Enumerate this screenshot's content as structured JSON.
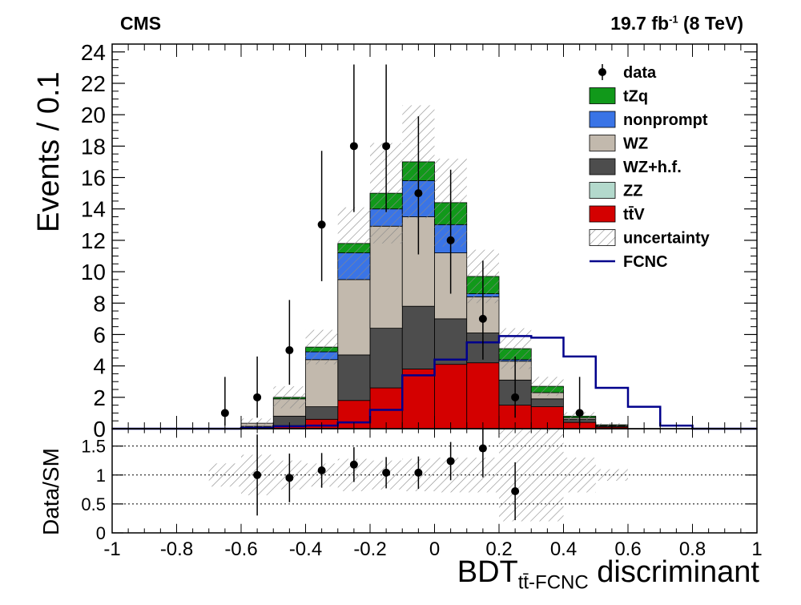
{
  "header": {
    "experiment": "CMS",
    "lumi_value": "19.7 fb",
    "lumi_exp": "-1",
    "lumi_energy": " (8 TeV)"
  },
  "axes": {
    "ylabel_main": "Events / 0.1",
    "ylabel_ratio": "Data/SM",
    "xlabel_main": "BDT",
    "xlabel_sub": "tt̄-FCNC",
    "xlabel_tail": " discriminant"
  },
  "chart_data": [
    {
      "type": "bar",
      "subtype": "stacked-histogram",
      "bin_edges": [
        -1,
        -0.9,
        -0.8,
        -0.7,
        -0.6,
        -0.5,
        -0.4,
        -0.3,
        -0.2,
        -0.1,
        0,
        0.1,
        0.2,
        0.3,
        0.4,
        0.5,
        0.6,
        0.7,
        0.8,
        0.9,
        1
      ],
      "xlim": [
        -1,
        1
      ],
      "ylim": [
        0,
        24.5
      ],
      "yticks": [
        0,
        2,
        4,
        6,
        8,
        10,
        12,
        14,
        16,
        18,
        20,
        22,
        24
      ],
      "xticks": [
        "-1",
        "-0.8",
        "-0.6",
        "-0.4",
        "-0.2",
        "0",
        "0.2",
        "0.4",
        "0.6",
        "0.8",
        "1"
      ],
      "xtick_values": [
        -1,
        -0.8,
        -0.6,
        -0.4,
        -0.2,
        0,
        0.2,
        0.4,
        0.6,
        0.8,
        1
      ],
      "ylabel": "Events / 0.1",
      "legend_position": "top-right",
      "stack_order_bottom_to_top": [
        "ttV",
        "ZZ",
        "WZhf",
        "WZ",
        "nonprompt",
        "tZq"
      ],
      "series": [
        {
          "key": "ttV",
          "name": "tt̄V",
          "color": "#d40000",
          "values": [
            0,
            0,
            0,
            0,
            0.05,
            0.2,
            0.6,
            1.8,
            2.6,
            3.8,
            4.1,
            4.2,
            1.5,
            1.4,
            0.4,
            0.1,
            0,
            0,
            0,
            0
          ]
        },
        {
          "key": "ZZ",
          "name": "ZZ",
          "color": "#b3d9cc",
          "values": [
            0,
            0,
            0,
            0,
            0,
            0,
            0,
            0,
            0,
            0,
            0,
            0,
            0,
            0,
            0,
            0,
            0,
            0,
            0,
            0
          ]
        },
        {
          "key": "WZhf",
          "name": "WZ+h.f.",
          "color": "#4d4d4d",
          "values": [
            0,
            0,
            0,
            0,
            0.1,
            0.6,
            0.8,
            2.9,
            3.8,
            4.0,
            2.9,
            1.9,
            1.6,
            0.5,
            0.2,
            0.05,
            0,
            0,
            0,
            0
          ]
        },
        {
          "key": "WZ",
          "name": "WZ",
          "color": "#c2b9ad",
          "values": [
            0,
            0,
            0,
            0,
            0.2,
            1.1,
            3.0,
            4.8,
            6.5,
            5.7,
            4.2,
            2.3,
            1.2,
            0.4,
            0.1,
            0.05,
            0,
            0,
            0,
            0
          ]
        },
        {
          "key": "nonprompt",
          "name": "nonprompt",
          "color": "#3a74e6",
          "values": [
            0,
            0,
            0,
            0,
            0,
            0,
            0.5,
            1.7,
            1.1,
            2.3,
            1.8,
            0.2,
            0.1,
            0,
            0,
            0,
            0,
            0,
            0,
            0
          ]
        },
        {
          "key": "tZq",
          "name": "tZq",
          "color": "#11991a",
          "values": [
            0,
            0,
            0,
            0,
            0,
            0.1,
            0.3,
            0.6,
            1.0,
            1.2,
            1.4,
            1.1,
            0.7,
            0.4,
            0.1,
            0.05,
            0,
            0,
            0,
            0
          ]
        }
      ],
      "total_uncertainty": [
        0,
        0,
        0,
        0,
        0.3,
        0.7,
        1.1,
        2.3,
        3.2,
        3.6,
        2.8,
        1.7,
        1.3,
        0.6,
        0.25,
        0.1,
        0,
        0,
        0,
        0
      ],
      "fcnc": {
        "name": "FCNC",
        "color": "#00008c",
        "values": [
          0,
          0,
          0,
          0,
          0.05,
          0.15,
          0.2,
          0.4,
          1.2,
          3.4,
          4.4,
          5.5,
          5.9,
          5.8,
          4.6,
          2.6,
          1.4,
          0.2,
          0,
          0
        ]
      },
      "data": {
        "name": "data",
        "x": [
          -0.65,
          -0.55,
          -0.45,
          -0.35,
          -0.25,
          -0.15,
          -0.05,
          0.05,
          0.15,
          0.25,
          0.45
        ],
        "y": [
          1,
          2,
          5,
          13,
          18,
          18,
          15,
          12,
          7,
          2,
          1
        ],
        "err_up": [
          2.3,
          2.6,
          3.2,
          4.7,
          5.2,
          5.2,
          4.9,
          4.5,
          3.7,
          2.6,
          2.3
        ],
        "err_down": [
          0.8,
          1.3,
          2.2,
          3.6,
          4.2,
          4.2,
          3.9,
          3.4,
          2.6,
          1.3,
          0.8
        ]
      },
      "legend": [
        {
          "label": "data",
          "kind": "marker"
        },
        {
          "label": "tZq",
          "kind": "box",
          "color": "#11991a"
        },
        {
          "label": "nonprompt",
          "kind": "box",
          "color": "#3a74e6"
        },
        {
          "label": "WZ",
          "kind": "box",
          "color": "#c2b9ad"
        },
        {
          "label": "WZ+h.f.",
          "kind": "box",
          "color": "#4d4d4d"
        },
        {
          "label": "ZZ",
          "kind": "box",
          "color": "#b3d9cc"
        },
        {
          "label": "tt̄V",
          "kind": "box",
          "color": "#d40000"
        },
        {
          "label": "uncertainty",
          "kind": "hatch"
        },
        {
          "label": "FCNC",
          "kind": "line",
          "color": "#00008c"
        }
      ]
    },
    {
      "type": "scatter",
      "subtype": "ratio",
      "ylabel": "Data/SM",
      "ylim": [
        0,
        1.8
      ],
      "yticks": [
        0,
        0.5,
        1,
        1.5
      ],
      "ytick_labels": [
        "0",
        "0.5",
        "1",
        "1.5"
      ],
      "ref_lines": [
        0.5,
        1,
        1.5
      ],
      "x": [
        -0.55,
        -0.45,
        -0.35,
        -0.25,
        -0.15,
        -0.05,
        0.05,
        0.15,
        0.25
      ],
      "y": [
        1.0,
        0.95,
        1.08,
        1.18,
        1.04,
        1.04,
        1.24,
        1.46,
        0.72
      ],
      "err": [
        0.7,
        0.42,
        0.3,
        0.3,
        0.27,
        0.28,
        0.33,
        0.5,
        0.5
      ],
      "band_edges": [
        -0.7,
        -0.6,
        -0.5,
        -0.4,
        -0.3,
        -0.2,
        -0.1,
        0,
        0.1,
        0.2,
        0.3,
        0.4,
        0.5,
        0.6
      ],
      "band_halfwidth": [
        0.2,
        0.35,
        0.25,
        0.2,
        0.28,
        0.25,
        0.28,
        0.3,
        0.3,
        0.8,
        0.8,
        0.3,
        0.1
      ]
    }
  ]
}
